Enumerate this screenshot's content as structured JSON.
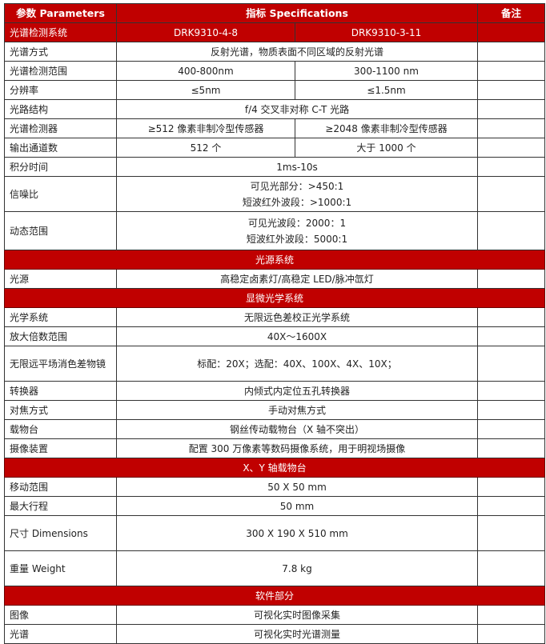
{
  "header": {
    "param": "参数 Parameters",
    "spec": "指标 Specifications",
    "note": "备注"
  },
  "models": {
    "label": "光谱检测系统",
    "a": "DRK9310-4-8",
    "b": "DRK9310-3-11"
  },
  "rows1": [
    {
      "p": "光谱方式",
      "v": "反射光谱，物质表面不同区域的反射光谱"
    },
    {
      "p": "光谱检测范围",
      "a": "400-800nm",
      "b": "300-1100 nm"
    },
    {
      "p": "分辨率",
      "a": "≤5nm",
      "b": "≤1.5nm"
    },
    {
      "p": "光路结构",
      "v": "f/4 交叉非对称 C-T 光路"
    },
    {
      "p": "光谱检测器",
      "a": "≥512 像素非制冷型传感器",
      "b": "≥2048 像素非制冷型传感器"
    },
    {
      "p": "输出通道数",
      "a": "512 个",
      "b": "大于 1000 个"
    },
    {
      "p": "积分时间",
      "v": "1ms-10s"
    },
    {
      "p": "信噪比",
      "l1": "可见光部分：>450:1",
      "l2": "短波红外波段：>1000:1"
    },
    {
      "p": "动态范围",
      "l1": "可见光波段：2000：1",
      "l2": "短波红外波段：5000:1"
    }
  ],
  "sections": [
    {
      "title": "光源系统",
      "rows": [
        {
          "p": "光源",
          "v": "高稳定卤素灯/高稳定 LED/脉冲氙灯"
        }
      ]
    },
    {
      "title": "显微光学系统",
      "rows": [
        {
          "p": "光学系统",
          "v": "无限远色差校正光学系统"
        },
        {
          "p": "放大倍数范围",
          "v": "40X～1600X"
        },
        {
          "p": "无限远平场消色差物镜",
          "v": "标配：20X；选配：40X、100X、4X、10X；"
        },
        {
          "p": "转换器",
          "v": "内倾式内定位五孔转换器"
        },
        {
          "p": "对焦方式",
          "v": "手动对焦方式"
        },
        {
          "p": "载物台",
          "v": "钢丝传动载物台（X 轴不突出）"
        },
        {
          "p": "摄像装置",
          "v": "配置 300 万像素等数码摄像系统，用于明视场摄像"
        }
      ]
    },
    {
      "title": "X、Y 轴载物台",
      "rows": [
        {
          "p": "移动范围",
          "v": "50 X 50 mm"
        },
        {
          "p": "最大行程",
          "v": "50 mm"
        },
        {
          "p": "尺寸 Dimensions",
          "v": "300 X 190 X 510 mm"
        },
        {
          "p": "重量 Weight",
          "v": "7.8 kg"
        }
      ]
    },
    {
      "title": "软件部分",
      "rows": [
        {
          "p": "图像",
          "v": "可视化实时图像采集"
        },
        {
          "p": "光谱",
          "v": "可视化实时光谱测量"
        }
      ]
    }
  ],
  "colors": {
    "header_bg": "#c00000",
    "header_text": "#ffffff"
  }
}
